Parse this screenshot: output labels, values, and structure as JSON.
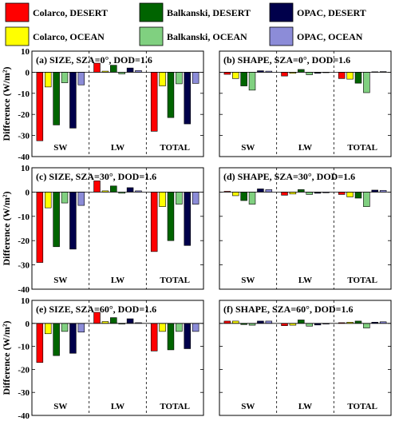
{
  "legend": [
    {
      "name": "Colarco, DESERT",
      "color": "#ff0000"
    },
    {
      "name": "Balkanski, DESERT",
      "color": "#006400"
    },
    {
      "name": "OPAC, DESERT",
      "color": "#00004b"
    },
    {
      "name": "Colarco, OCEAN",
      "color": "#ffff00"
    },
    {
      "name": "Balkanski, OCEAN",
      "color": "#80d080"
    },
    {
      "name": "OPAC, OCEAN",
      "color": "#8c8cd8"
    }
  ],
  "ylabel": "Difference (W/m²)",
  "chart_data": [
    {
      "type": "bar",
      "title": "(a) SIZE, SZA=0°, DOD=1.6",
      "categories": [
        "SW",
        "LW",
        "TOTAL"
      ],
      "series": [
        {
          "name": "Colarco, DESERT",
          "values": [
            -32.5,
            4.3,
            -28.0
          ]
        },
        {
          "name": "Colarco, OCEAN",
          "values": [
            -7.0,
            0.5,
            -6.5
          ]
        },
        {
          "name": "Balkanski, DESERT",
          "values": [
            -25.0,
            3.3,
            -21.5
          ]
        },
        {
          "name": "Balkanski, OCEAN",
          "values": [
            -5.0,
            -0.8,
            -5.5
          ]
        },
        {
          "name": "OPAC, DESERT",
          "values": [
            -26.5,
            2.0,
            -24.5
          ]
        },
        {
          "name": "OPAC, OCEAN",
          "values": [
            -6.0,
            0.8,
            -5.3
          ]
        }
      ],
      "ylim": [
        -40,
        10
      ],
      "yticks": [
        "-40",
        "-30",
        "-20",
        "-10",
        "0",
        "10"
      ]
    },
    {
      "type": "bar",
      "title": "(b) SHAPE, SZA=0°, DOD=1.6",
      "categories": [
        "SW",
        "LW",
        "TOTAL"
      ],
      "series": [
        {
          "name": "Colarco, DESERT",
          "values": [
            -1.0,
            -1.8,
            -3.0
          ]
        },
        {
          "name": "Colarco, OCEAN",
          "values": [
            -3.0,
            -0.5,
            -3.3
          ]
        },
        {
          "name": "Balkanski, DESERT",
          "values": [
            -6.5,
            1.3,
            -5.2
          ]
        },
        {
          "name": "Balkanski, OCEAN",
          "values": [
            -8.5,
            -1.2,
            -9.7
          ]
        },
        {
          "name": "OPAC, DESERT",
          "values": [
            0.7,
            -0.5,
            0.2
          ]
        },
        {
          "name": "OPAC, OCEAN",
          "values": [
            0.5,
            -0.2,
            0.3
          ]
        }
      ],
      "ylim": [
        -40,
        10
      ]
    },
    {
      "type": "bar",
      "title": "(c) SIZE, SZA=30°, DOD=1.6",
      "categories": [
        "SW",
        "LW",
        "TOTAL"
      ],
      "series": [
        {
          "name": "Colarco, DESERT",
          "values": [
            -29.0,
            4.6,
            -24.5
          ]
        },
        {
          "name": "Colarco, OCEAN",
          "values": [
            -6.5,
            0.5,
            -6.0
          ]
        },
        {
          "name": "Balkanski, DESERT",
          "values": [
            -22.5,
            2.5,
            -20.0
          ]
        },
        {
          "name": "Balkanski, OCEAN",
          "values": [
            -4.5,
            -0.5,
            -5.0
          ]
        },
        {
          "name": "OPAC, DESERT",
          "values": [
            -23.5,
            1.8,
            -22.0
          ]
        },
        {
          "name": "OPAC, OCEAN",
          "values": [
            -5.5,
            0.5,
            -5.0
          ]
        }
      ],
      "ylim": [
        -40,
        10
      ],
      "yticks": [
        "-40",
        "-30",
        "-20",
        "-10",
        "0",
        "10"
      ]
    },
    {
      "type": "bar",
      "title": "(d) SHAPE, SZA=30°, DOD=1.6",
      "categories": [
        "SW",
        "LW",
        "TOTAL"
      ],
      "series": [
        {
          "name": "Colarco, DESERT",
          "values": [
            0.3,
            -1.3,
            -1.0
          ]
        },
        {
          "name": "Colarco, OCEAN",
          "values": [
            -1.5,
            -0.8,
            -2.0
          ]
        },
        {
          "name": "Balkanski, DESERT",
          "values": [
            -3.5,
            1.0,
            -2.5
          ]
        },
        {
          "name": "Balkanski, OCEAN",
          "values": [
            -5.0,
            -1.0,
            -6.0
          ]
        },
        {
          "name": "OPAC, DESERT",
          "values": [
            1.3,
            -0.5,
            0.8
          ]
        },
        {
          "name": "OPAC, OCEAN",
          "values": [
            1.0,
            -0.3,
            0.7
          ]
        }
      ],
      "ylim": [
        -40,
        10
      ]
    },
    {
      "type": "bar",
      "title": "(e) SIZE, SZA=60°, DOD=1.6",
      "categories": [
        "SW",
        "LW",
        "TOTAL"
      ],
      "series": [
        {
          "name": "Colarco, DESERT",
          "values": [
            -17.0,
            4.8,
            -12.0
          ]
        },
        {
          "name": "Colarco, OCEAN",
          "values": [
            -4.5,
            0.8,
            -3.5
          ]
        },
        {
          "name": "Balkanski, DESERT",
          "values": [
            -14.0,
            2.5,
            -11.5
          ]
        },
        {
          "name": "Balkanski, OCEAN",
          "values": [
            -3.5,
            -0.3,
            -3.5
          ]
        },
        {
          "name": "OPAC, DESERT",
          "values": [
            -13.0,
            2.0,
            -11.0
          ]
        },
        {
          "name": "OPAC, OCEAN",
          "values": [
            -3.8,
            0.3,
            -3.5
          ]
        }
      ],
      "ylim": [
        -40,
        10
      ],
      "yticks": [
        "-40",
        "-30",
        "-20",
        "-10",
        "0",
        "10"
      ]
    },
    {
      "type": "bar",
      "title": "(f) SHAPE, SZA=60°, DOD=1.6",
      "categories": [
        "SW",
        "LW",
        "TOTAL"
      ],
      "series": [
        {
          "name": "Colarco, DESERT",
          "values": [
            1.0,
            -1.0,
            0.3
          ]
        },
        {
          "name": "Colarco, OCEAN",
          "values": [
            1.0,
            -0.8,
            0.5
          ]
        },
        {
          "name": "Balkanski, DESERT",
          "values": [
            -0.5,
            1.5,
            1.0
          ]
        },
        {
          "name": "Balkanski, OCEAN",
          "values": [
            -0.8,
            -1.2,
            -2.0
          ]
        },
        {
          "name": "OPAC, DESERT",
          "values": [
            1.0,
            -0.7,
            0.5
          ]
        },
        {
          "name": "OPAC, OCEAN",
          "values": [
            1.0,
            -0.3,
            0.7
          ]
        }
      ],
      "ylim": [
        -40,
        10
      ]
    }
  ]
}
